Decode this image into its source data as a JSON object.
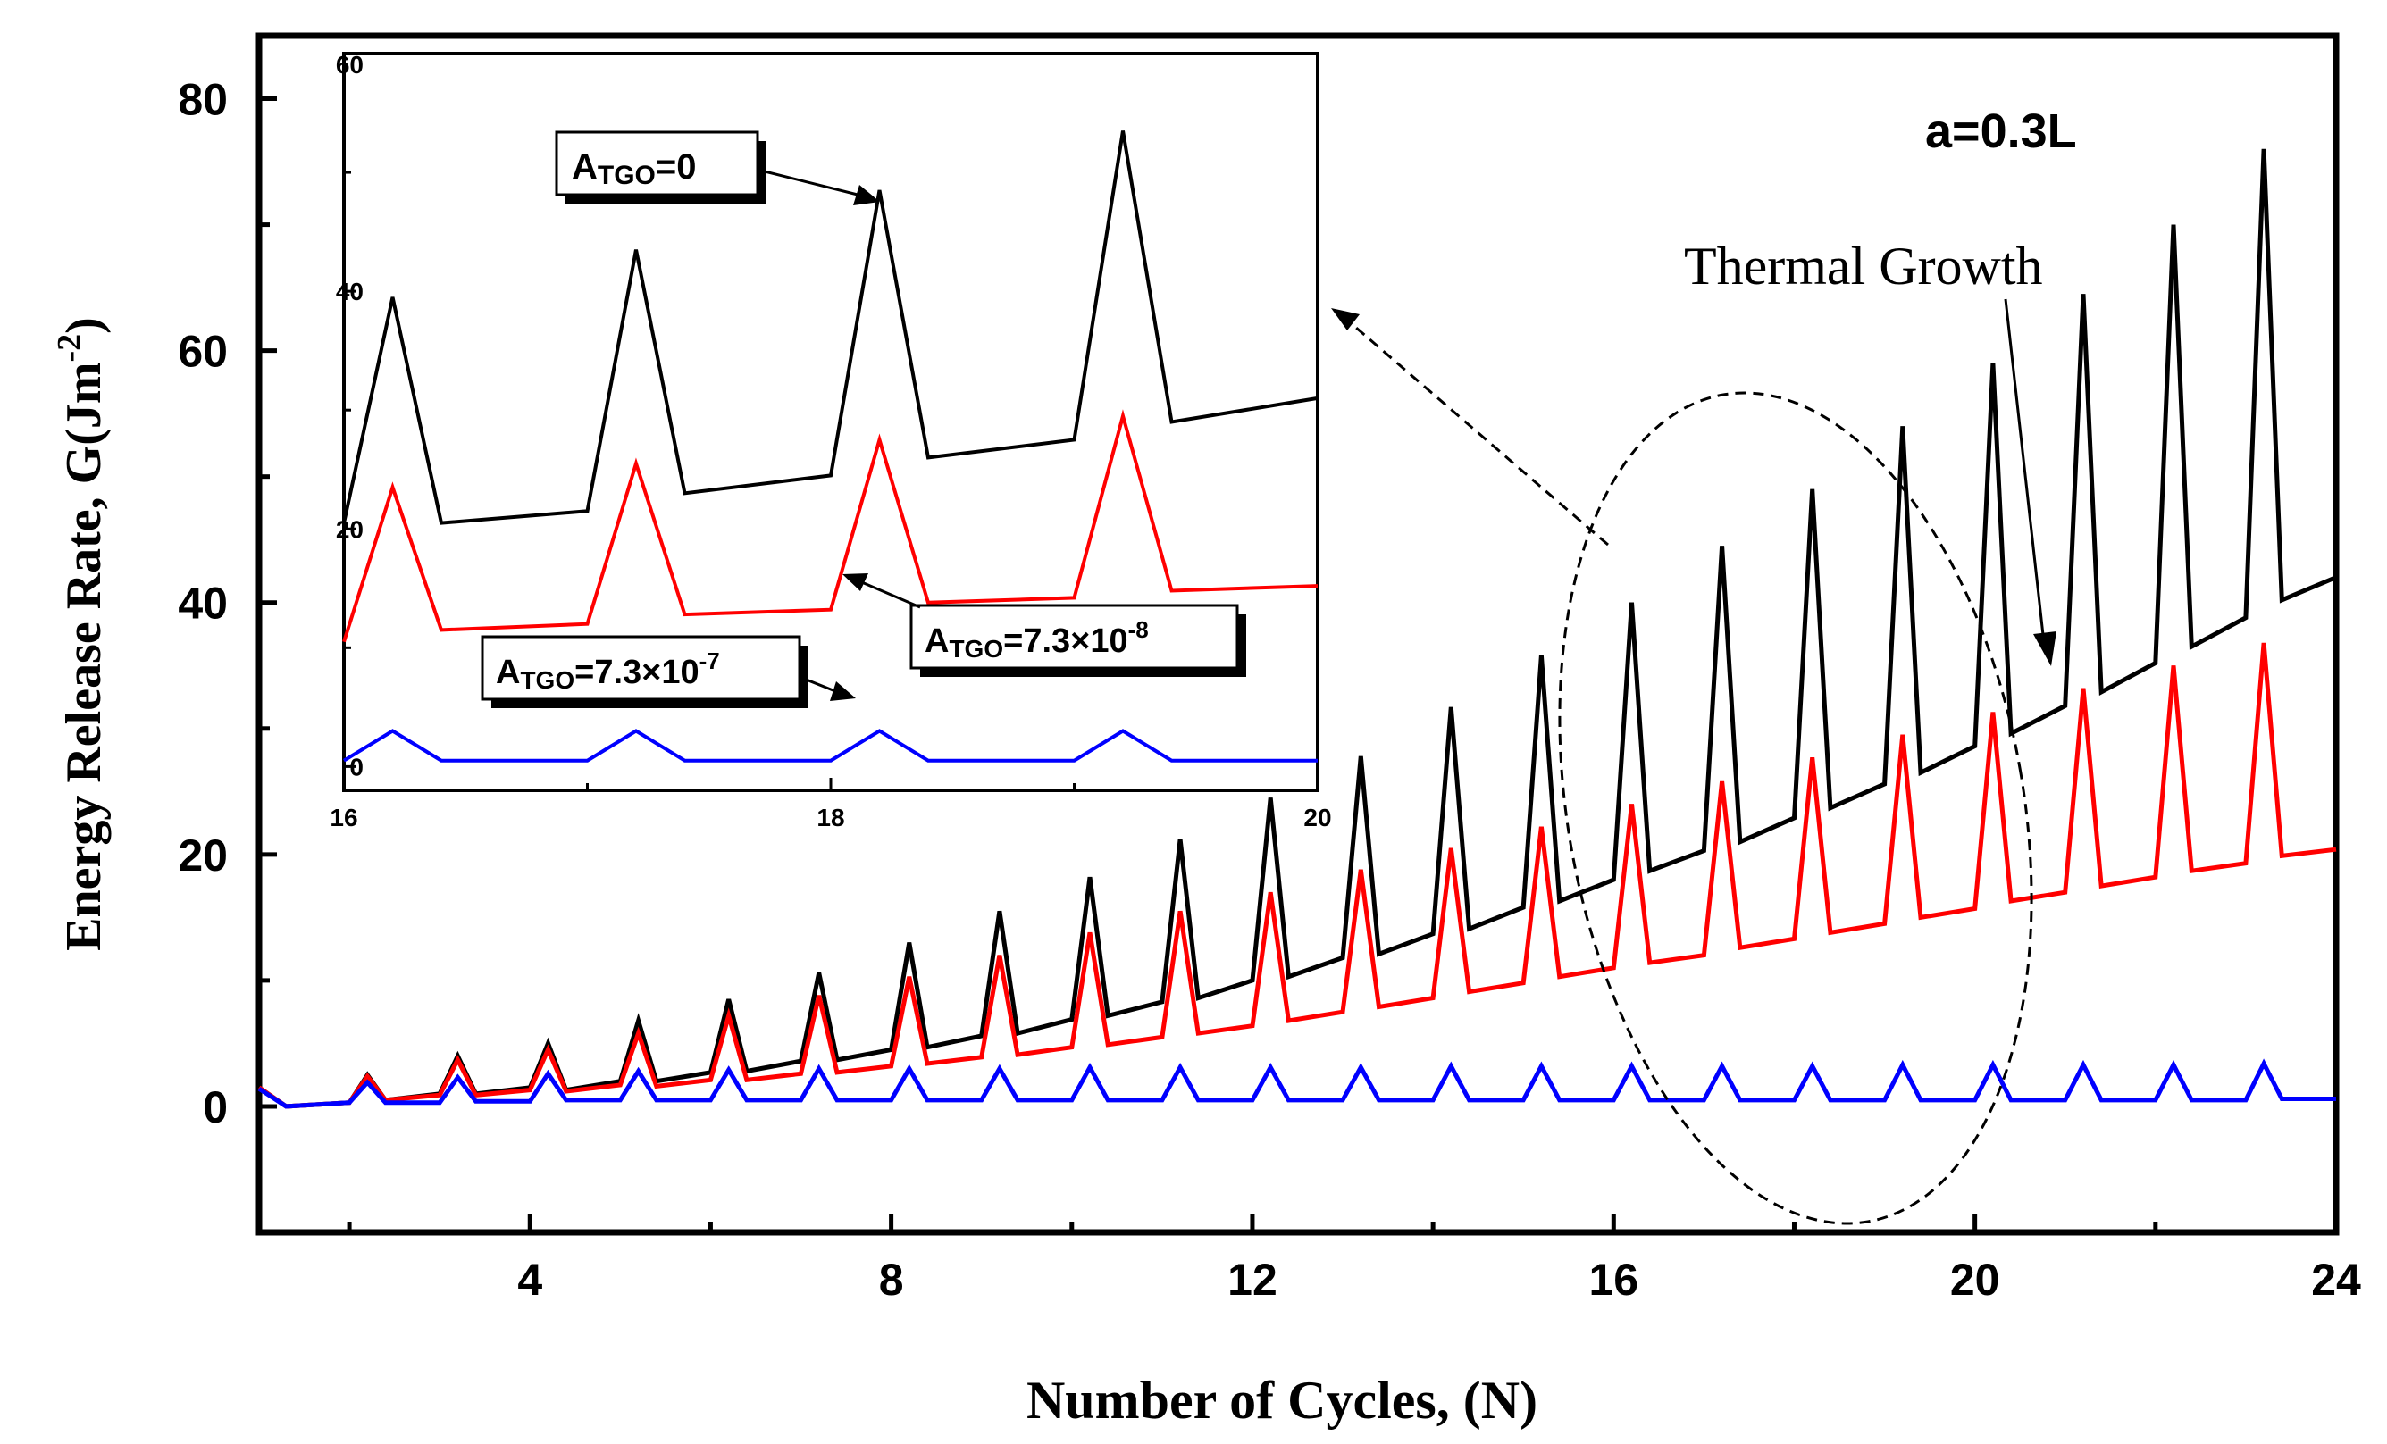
{
  "chart_data": {
    "type": "line",
    "x_label": "Number of Cycles, (N)",
    "y_label": "Energy Release Rate, G(Jm",
    "y_label_exp": "-2",
    "y_label_close": ")",
    "xlim": [
      1,
      24
    ],
    "ylim": [
      -10,
      85
    ],
    "x_ticks": [
      "4",
      "8",
      "12",
      "16",
      "20",
      "24"
    ],
    "y_ticks": [
      "0",
      "20",
      "40",
      "60",
      "80"
    ],
    "crack_label": "a=0.3L",
    "thermal_growth_label": "Thermal Growth",
    "series": [
      {
        "name": "A_TGO=0",
        "color": "#000000",
        "x": [
          1,
          1.3,
          2,
          2.2,
          2.4,
          3,
          3.2,
          3.4,
          4,
          4.2,
          4.4,
          5,
          5.2,
          5.4,
          6,
          6.2,
          6.4,
          7,
          7.2,
          7.4,
          8,
          8.2,
          8.4,
          9,
          9.2,
          9.4,
          10,
          10.2,
          10.4,
          11,
          11.2,
          11.4,
          12,
          12.2,
          12.4,
          13,
          13.2,
          13.4,
          14,
          14.2,
          14.4,
          15,
          15.2,
          15.4,
          16,
          16.2,
          16.4,
          17,
          17.2,
          17.4,
          18,
          18.2,
          18.4,
          19,
          19.2,
          19.4,
          20,
          20.2,
          20.4,
          21,
          21.2,
          21.4,
          22,
          22.2,
          22.4,
          23,
          23.2,
          23.4,
          24
        ],
        "y": [
          1.5,
          0,
          0.3,
          2.5,
          0.5,
          1,
          4,
          1,
          1.5,
          5,
          1.3,
          2,
          6.8,
          2,
          2.7,
          8.5,
          2.8,
          3.6,
          10.6,
          3.7,
          4.5,
          13,
          4.7,
          5.6,
          15.5,
          5.8,
          6.9,
          18.2,
          7.2,
          8.3,
          21.2,
          8.6,
          10,
          24.5,
          10.3,
          11.8,
          27.8,
          12.1,
          13.7,
          31.7,
          14.1,
          15.8,
          35.8,
          16.3,
          18,
          40,
          18.7,
          20.3,
          44.5,
          21,
          22.9,
          49,
          23.7,
          25.6,
          54,
          26.5,
          28.6,
          59,
          29.6,
          31.8,
          64.5,
          32.9,
          35.2,
          70,
          36.5,
          38.8,
          76,
          40.2,
          42
        ]
      },
      {
        "name": "A_TGO=7.3×10^-8",
        "color": "#ff0000",
        "x": [
          1,
          1.3,
          2,
          2.2,
          2.4,
          3,
          3.2,
          3.4,
          4,
          4.2,
          4.4,
          5,
          5.2,
          5.4,
          6,
          6.2,
          6.4,
          7,
          7.2,
          7.4,
          8,
          8.2,
          8.4,
          9,
          9.2,
          9.4,
          10,
          10.2,
          10.4,
          11,
          11.2,
          11.4,
          12,
          12.2,
          12.4,
          13,
          13.2,
          13.4,
          14,
          14.2,
          14.4,
          15,
          15.2,
          15.4,
          16,
          16.2,
          16.4,
          17,
          17.2,
          17.4,
          18,
          18.2,
          18.4,
          19,
          19.2,
          19.4,
          20,
          20.2,
          20.4,
          21,
          21.2,
          21.4,
          22,
          22.2,
          22.4,
          23,
          23.2,
          23.4,
          24
        ],
        "y": [
          1.5,
          0,
          0.3,
          2.4,
          0.5,
          0.9,
          3.7,
          0.9,
          1.3,
          4.5,
          1.2,
          1.7,
          5.8,
          1.6,
          2.1,
          7.2,
          2.1,
          2.6,
          8.8,
          2.7,
          3.2,
          10.3,
          3.4,
          3.9,
          12,
          4.1,
          4.7,
          13.8,
          4.9,
          5.5,
          15.5,
          5.8,
          6.4,
          17,
          6.8,
          7.5,
          18.8,
          7.9,
          8.6,
          20.5,
          9.1,
          9.8,
          22.2,
          10.3,
          11,
          24,
          11.4,
          12,
          25.8,
          12.6,
          13.3,
          27.7,
          13.8,
          14.5,
          29.5,
          15,
          15.7,
          31.3,
          16.3,
          17,
          33.2,
          17.5,
          18.2,
          35,
          18.7,
          19.3,
          36.8,
          19.9,
          20.4
        ]
      },
      {
        "name": "A_TGO=7.3×10^-7",
        "color": "#0000ff",
        "x": [
          1,
          1.3,
          2,
          2.2,
          2.4,
          3,
          3.2,
          3.4,
          4,
          4.2,
          4.4,
          5,
          5.2,
          5.4,
          6,
          6.2,
          6.4,
          7,
          7.2,
          7.4,
          8,
          8.2,
          8.4,
          9,
          9.2,
          9.4,
          10,
          10.2,
          10.4,
          11,
          11.2,
          11.4,
          12,
          12.2,
          12.4,
          13,
          13.2,
          13.4,
          14,
          14.2,
          14.4,
          15,
          15.2,
          15.4,
          16,
          16.2,
          16.4,
          17,
          17.2,
          17.4,
          18,
          18.2,
          18.4,
          19,
          19.2,
          19.4,
          20,
          20.2,
          20.4,
          21,
          21.2,
          21.4,
          22,
          22.2,
          22.4,
          23,
          23.2,
          23.4,
          24
        ],
        "y": [
          1.4,
          0,
          0.3,
          1.9,
          0.3,
          0.3,
          2.3,
          0.4,
          0.4,
          2.6,
          0.5,
          0.5,
          2.8,
          0.5,
          0.5,
          2.9,
          0.5,
          0.5,
          3,
          0.5,
          0.5,
          3,
          0.5,
          0.5,
          3,
          0.5,
          0.5,
          3.1,
          0.5,
          0.5,
          3.1,
          0.5,
          0.5,
          3.1,
          0.5,
          0.5,
          3.1,
          0.5,
          0.5,
          3.2,
          0.5,
          0.5,
          3.2,
          0.5,
          0.5,
          3.2,
          0.5,
          0.5,
          3.2,
          0.5,
          0.5,
          3.2,
          0.5,
          0.5,
          3.3,
          0.5,
          0.5,
          3.3,
          0.5,
          0.5,
          3.3,
          0.5,
          0.5,
          3.3,
          0.5,
          0.5,
          3.4,
          0.6,
          0.6
        ]
      }
    ],
    "inset": {
      "xlim": [
        16,
        20
      ],
      "ylim": [
        -2,
        60
      ],
      "x_ticks": [
        "16",
        "18",
        "20"
      ],
      "y_ticks": [
        "0",
        "20",
        "40",
        "60"
      ],
      "labels": {
        "a0_base": "A",
        "a0_sub": "TGO",
        "a0_rest": "=0",
        "a8_base": "A",
        "a8_sub": "TGO",
        "a8_rest": "=7.3×10",
        "a8_exp": "-8",
        "a7_base": "A",
        "a7_sub": "TGO",
        "a7_rest": "=7.3×10",
        "a7_exp": "-7"
      },
      "series": [
        {
          "name": "A_TGO=0",
          "color": "#000000",
          "x": [
            16,
            16.2,
            16.4,
            17,
            17.2,
            17.4,
            18,
            18.2,
            18.4,
            19,
            19.2,
            19.4,
            20
          ],
          "y": [
            20.5,
            39.5,
            20.5,
            21.5,
            43.5,
            23,
            24.5,
            48.5,
            26,
            27.5,
            53.5,
            29,
            31
          ]
        },
        {
          "name": "A_TGO=7.3×10^-8",
          "color": "#ff0000",
          "x": [
            16,
            16.2,
            16.4,
            17,
            17.2,
            17.4,
            18,
            18.2,
            18.4,
            19,
            19.2,
            19.4,
            20
          ],
          "y": [
            10.5,
            23.5,
            11.5,
            12,
            25.5,
            12.8,
            13.2,
            27.5,
            13.8,
            14.2,
            29.5,
            14.8,
            15.2
          ]
        },
        {
          "name": "A_TGO=7.3×10^-7",
          "color": "#0000ff",
          "x": [
            16,
            16.2,
            16.4,
            17,
            17.2,
            17.4,
            18,
            18.2,
            18.4,
            19,
            19.2,
            19.4,
            20
          ],
          "y": [
            0.5,
            3,
            0.5,
            0.5,
            3,
            0.5,
            0.5,
            3,
            0.5,
            0.5,
            3,
            0.5,
            0.5
          ]
        }
      ]
    }
  }
}
